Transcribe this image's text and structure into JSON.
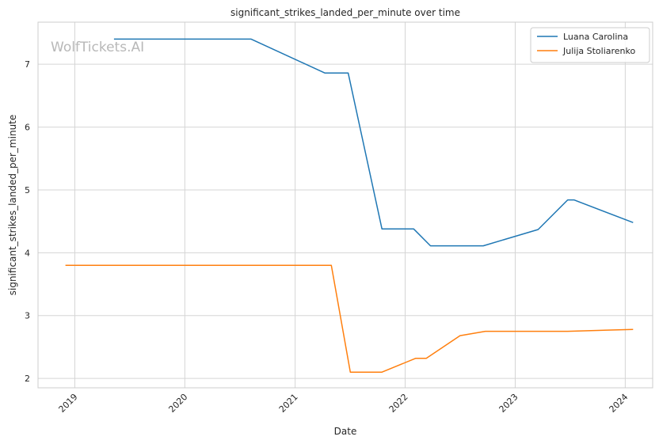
{
  "chart_data": {
    "type": "line",
    "title": "significant_strikes_landed_per_minute over time",
    "xlabel": "Date",
    "ylabel": "significant_strikes_landed_per_minute",
    "watermark": "WolfTickets.AI",
    "xlim": [
      "2018-09-01",
      "2024-04-01"
    ],
    "ylim": [
      1.85,
      7.67
    ],
    "x_ticks": [
      "2019-01-01",
      "2020-01-01",
      "2021-01-01",
      "2022-01-01",
      "2023-01-01",
      "2024-01-01"
    ],
    "x_tick_labels": [
      "2019",
      "2020",
      "2021",
      "2022",
      "2023",
      "2024"
    ],
    "y_ticks": [
      2,
      3,
      4,
      5,
      6,
      7
    ],
    "y_tick_labels": [
      "2",
      "3",
      "4",
      "5",
      "6",
      "7"
    ],
    "grid": true,
    "legend_position": "top-right",
    "series": [
      {
        "name": "Luana Carolina",
        "color": "#1f77b4",
        "points": [
          [
            "2019-05-11",
            7.4
          ],
          [
            "2020-08-08",
            7.4
          ],
          [
            "2021-04-10",
            6.86
          ],
          [
            "2021-06-26",
            6.86
          ],
          [
            "2021-10-16",
            4.38
          ],
          [
            "2022-01-29",
            4.38
          ],
          [
            "2022-03-26",
            4.11
          ],
          [
            "2022-09-17",
            4.11
          ],
          [
            "2023-03-18",
            4.37
          ],
          [
            "2023-06-24",
            4.84
          ],
          [
            "2023-07-15",
            4.84
          ],
          [
            "2024-01-27",
            4.48
          ]
        ]
      },
      {
        "name": "Julija Stoliarenko",
        "color": "#ff7f0e",
        "points": [
          [
            "2018-12-01",
            3.8
          ],
          [
            "2021-05-01",
            3.8
          ],
          [
            "2021-07-03",
            2.1
          ],
          [
            "2021-10-16",
            2.1
          ],
          [
            "2022-02-05",
            2.32
          ],
          [
            "2022-03-12",
            2.32
          ],
          [
            "2022-07-02",
            2.68
          ],
          [
            "2022-09-24",
            2.75
          ],
          [
            "2023-06-24",
            2.75
          ],
          [
            "2024-01-27",
            2.78
          ]
        ]
      }
    ]
  }
}
